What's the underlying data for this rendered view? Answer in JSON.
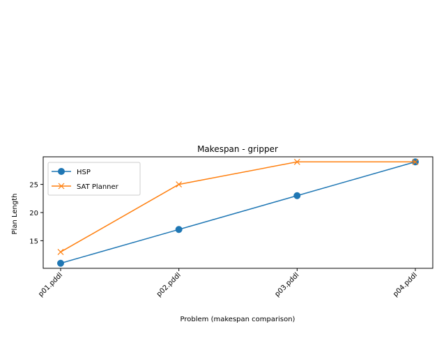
{
  "chart_data": {
    "type": "line",
    "title": "Makespan - gripper",
    "xlabel": "Problem (makespan comparison)",
    "ylabel": "Plan Length",
    "categories": [
      "p01.pddl",
      "p02.pddl",
      "p03.pddl",
      "p04.pddl"
    ],
    "series": [
      {
        "name": "HSP",
        "values": [
          11,
          17,
          23,
          29
        ],
        "color": "#1f77b4",
        "marker": "circle"
      },
      {
        "name": "SAT Planner",
        "values": [
          13,
          25,
          29,
          29
        ],
        "color": "#ff7f0e",
        "marker": "x"
      }
    ],
    "ylim": [
      10.1,
      29.9
    ],
    "yticks": [
      15,
      20,
      25
    ],
    "grid": false,
    "legend_position": "upper left",
    "xtick_rotation": 45
  }
}
